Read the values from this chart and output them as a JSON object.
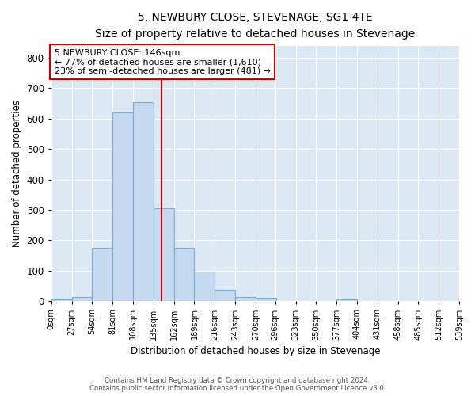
{
  "title": "5, NEWBURY CLOSE, STEVENAGE, SG1 4TE",
  "subtitle": "Size of property relative to detached houses in Stevenage",
  "xlabel": "Distribution of detached houses by size in Stevenage",
  "ylabel": "Number of detached properties",
  "bar_color": "#c5d9f0",
  "bar_edge_color": "#7aadd4",
  "background_color": "#dde8f5",
  "grid_color": "#ffffff",
  "annotation_box_color": "#cc0000",
  "property_line_color": "#cc0000",
  "property_size": 146,
  "property_label": "5 NEWBURY CLOSE: 146sqm",
  "annotation_line1": "← 77% of detached houses are smaller (1,610)",
  "annotation_line2": "23% of semi-detached houses are larger (481) →",
  "bin_edges": [
    0,
    27,
    54,
    81,
    108,
    135,
    162,
    189,
    216,
    243,
    270,
    296,
    323,
    350,
    377,
    404,
    431,
    458,
    485,
    512,
    539
  ],
  "bin_counts": [
    5,
    15,
    175,
    620,
    655,
    305,
    175,
    97,
    38,
    15,
    10,
    0,
    0,
    0,
    5,
    0,
    0,
    0,
    0,
    0
  ],
  "ylim": [
    0,
    840
  ],
  "yticks": [
    0,
    100,
    200,
    300,
    400,
    500,
    600,
    700,
    800
  ],
  "footer_line1": "Contains HM Land Registry data © Crown copyright and database right 2024.",
  "footer_line2": "Contains public sector information licensed under the Open Government Licence v3.0."
}
